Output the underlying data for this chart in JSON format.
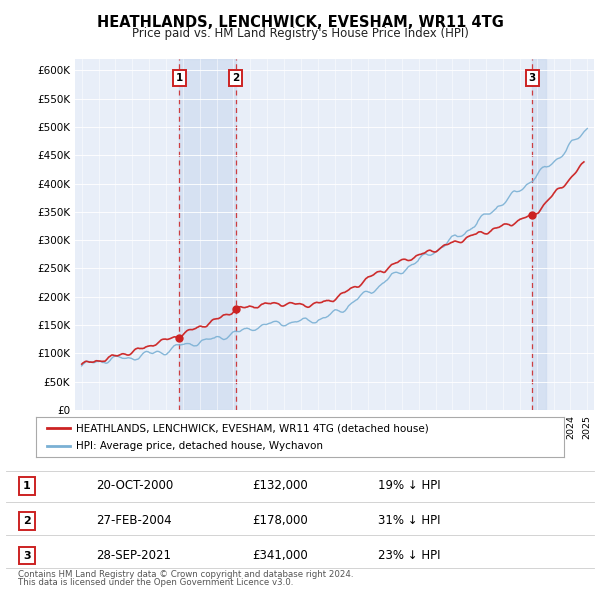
{
  "title": "HEATHLANDS, LENCHWICK, EVESHAM, WR11 4TG",
  "subtitle": "Price paid vs. HM Land Registry's House Price Index (HPI)",
  "ylim": [
    0,
    620000
  ],
  "yticks": [
    0,
    50000,
    100000,
    150000,
    200000,
    250000,
    300000,
    350000,
    400000,
    450000,
    500000,
    550000,
    600000
  ],
  "ytick_labels": [
    "£0",
    "£50K",
    "£100K",
    "£150K",
    "£200K",
    "£250K",
    "£300K",
    "£350K",
    "£400K",
    "£450K",
    "£500K",
    "£550K",
    "£600K"
  ],
  "background_color": "#ffffff",
  "plot_bg_color": "#e8eef8",
  "hpi_color": "#7ab0d4",
  "price_color": "#cc2222",
  "vline_color": "#cc2222",
  "shade_color": "#c8d8ee",
  "sales": [
    {
      "label": "1",
      "date_num": 2000.79,
      "price": 132000
    },
    {
      "label": "2",
      "date_num": 2004.15,
      "price": 178000
    },
    {
      "label": "3",
      "date_num": 2021.73,
      "price": 341000
    }
  ],
  "legend_line1": "HEATHLANDS, LENCHWICK, EVESHAM, WR11 4TG (detached house)",
  "legend_line2": "HPI: Average price, detached house, Wychavon",
  "table_rows": [
    {
      "num": "1",
      "date": "20-OCT-2000",
      "price": "£132,000",
      "pct": "19% ↓ HPI"
    },
    {
      "num": "2",
      "date": "27-FEB-2004",
      "price": "£178,000",
      "pct": "31% ↓ HPI"
    },
    {
      "num": "3",
      "date": "28-SEP-2021",
      "price": "£341,000",
      "pct": "23% ↓ HPI"
    }
  ],
  "footer1": "Contains HM Land Registry data © Crown copyright and database right 2024.",
  "footer2": "This data is licensed under the Open Government Licence v3.0."
}
